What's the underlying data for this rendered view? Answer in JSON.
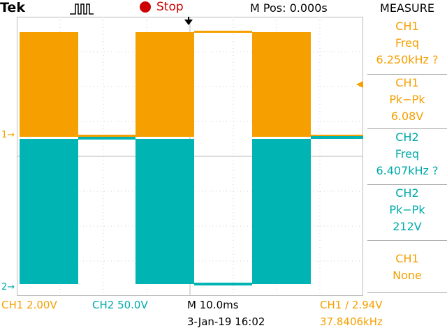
{
  "top": {
    "brand": "Tek",
    "status": "Stop",
    "hpos": "M Pos: 0.000s",
    "measure_title": "MEASURE"
  },
  "markers": {
    "ch1": "1",
    "ch2": "2"
  },
  "measurements": [
    {
      "source": "CH1",
      "type": "Freq",
      "value": "6.250kHz ?",
      "color": "#f5a000"
    },
    {
      "source": "CH1",
      "type": "Pk−Pk",
      "value": "6.08V",
      "color": "#f5a000"
    },
    {
      "source": "CH2",
      "type": "Freq",
      "value": "6.407kHz ?",
      "color": "#00aaaa"
    },
    {
      "source": "CH2",
      "type": "Pk−Pk",
      "value": "212V",
      "color": "#00aaaa"
    },
    {
      "source": "CH1",
      "type": "None",
      "value": "",
      "color": "#f5a000"
    }
  ],
  "bottom": {
    "ch1_scale": "CH1  2.00V",
    "ch2_scale": "CH2  50.0V",
    "timebase": "M 10.0ms",
    "trigger": "CH1 ∕ 2.94V",
    "date": "3-Jan-19 16:02",
    "trig_freq": "37.8406kHz"
  },
  "colors": {
    "ch1": "#f5a000",
    "ch2": "#00b4b4",
    "stop": "#cc0000"
  }
}
